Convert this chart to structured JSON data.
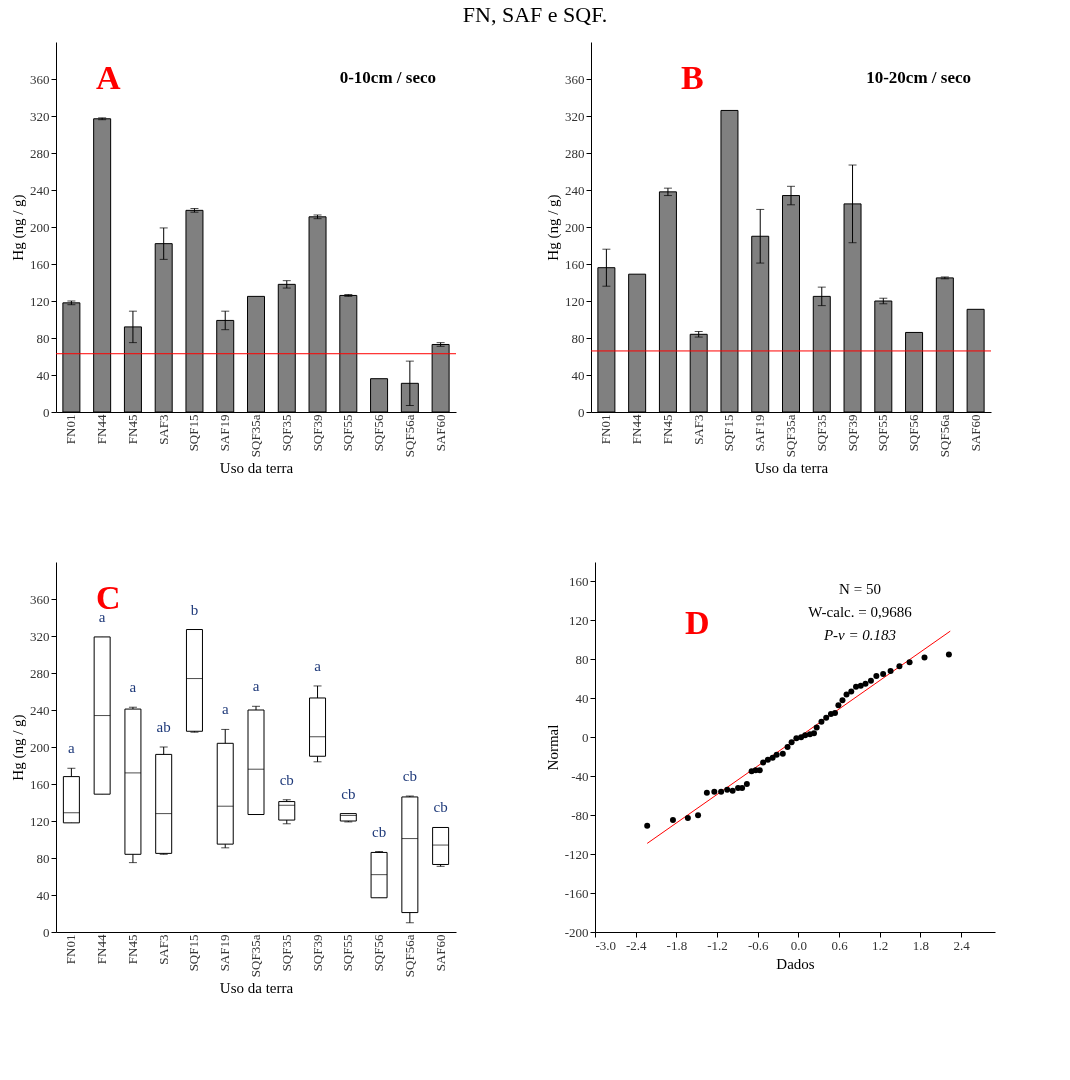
{
  "chart_data": [
    {
      "type": "bar",
      "title": "FN, SAF e SQF.",
      "annotations": [
        "A",
        "0-10cm / seco"
      ],
      "xlabel": "Uso da terra",
      "ylabel": "Hg (ng / g)",
      "categories": [
        "FN01",
        "FN44",
        "FN45",
        "SAF3",
        "SQF15",
        "SAF19",
        "SQF35a",
        "SQF35",
        "SQF39",
        "SQF55",
        "SQF56",
        "SQF56a",
        "SAF60"
      ],
      "color": "#808080",
      "values": [
        118,
        317,
        92,
        182,
        218,
        99,
        125,
        138,
        211,
        126,
        36,
        31,
        73
      ],
      "errors": [
        2,
        1,
        17,
        17,
        2,
        10,
        null,
        4,
        2,
        1,
        null,
        24,
        2
      ],
      "ylim": [
        0,
        400
      ],
      "yticks": [
        0,
        40,
        80,
        120,
        160,
        200,
        240,
        280,
        320,
        360
      ],
      "ref_lines": [
        {
          "axis": "y",
          "value": 63,
          "color": "#ff0000"
        }
      ]
    },
    {
      "type": "bar",
      "annotations": [
        "B",
        "10-20cm / seco"
      ],
      "xlabel": "Uso da terra",
      "ylabel": "Hg (ng / g)",
      "categories": [
        "FN01",
        "FN44",
        "FN45",
        "SAF3",
        "SQF15",
        "SAF19",
        "SQF35a",
        "SQF35",
        "SQF39",
        "SQF55",
        "SQF56",
        "SQF56a",
        "SAF60"
      ],
      "color": "#808080",
      "values": [
        156,
        149,
        238,
        84,
        326,
        190,
        234,
        125,
        225,
        120,
        86,
        145,
        111
      ],
      "errors": [
        20,
        null,
        4,
        3,
        null,
        29,
        10,
        10,
        42,
        3,
        null,
        1,
        null
      ],
      "ylim": [
        0,
        400
      ],
      "yticks": [
        0,
        40,
        80,
        120,
        160,
        200,
        240,
        280,
        320,
        360
      ],
      "ref_lines": [
        {
          "axis": "y",
          "value": 66,
          "color": "#ff0000"
        }
      ]
    },
    {
      "type": "box",
      "xlabel": "Uso da terra",
      "ylabel": "Hg (ng / g)",
      "annotations": [
        "C",
        {
          "text": "a",
          "x": "FN01",
          "y": 177
        },
        {
          "text": "a",
          "x": "FN44",
          "y": 319
        },
        {
          "text": "a",
          "x": "FN45",
          "y": 243
        },
        {
          "text": "ab",
          "x": "SAF3",
          "y": 200
        },
        {
          "text": "b",
          "x": "SQF15",
          "y": 327
        },
        {
          "text": "a",
          "x": "SAF19",
          "y": 219
        },
        {
          "text": "a",
          "x": "SQF35a",
          "y": 244
        },
        {
          "text": "cb",
          "x": "SQF35",
          "y": 143
        },
        {
          "text": "a",
          "x": "SQF39",
          "y": 266
        },
        {
          "text": "cb",
          "x": "SQF55",
          "y": 128
        },
        {
          "text": "cb",
          "x": "SQF56",
          "y": 87
        },
        {
          "text": "cb",
          "x": "SQF56a",
          "y": 147
        },
        {
          "text": "cb",
          "x": "SAF60",
          "y": 113
        }
      ],
      "categories": [
        "FN01",
        "FN44",
        "FN45",
        "SAF3",
        "SQF15",
        "SAF19",
        "SQF35a",
        "SQF35",
        "SQF39",
        "SQF55",
        "SQF56",
        "SQF56a",
        "SAF60"
      ],
      "boxes": [
        {
          "low": 118,
          "q1": 118,
          "median": 129,
          "q3": 168,
          "high": 177
        },
        {
          "low": 149,
          "q1": 149,
          "median": 234,
          "q3": 319,
          "high": 319
        },
        {
          "low": 75,
          "q1": 84,
          "median": 172,
          "q3": 241,
          "high": 243
        },
        {
          "low": 84,
          "q1": 85,
          "median": 128,
          "q3": 192,
          "high": 200
        },
        {
          "low": 216,
          "q1": 217,
          "median": 274,
          "q3": 327,
          "high": 327
        },
        {
          "low": 91,
          "q1": 95,
          "median": 136,
          "q3": 204,
          "high": 219
        },
        {
          "low": 127,
          "q1": 127,
          "median": 176,
          "q3": 240,
          "high": 244
        },
        {
          "low": 117,
          "q1": 121,
          "median": 137,
          "q3": 141,
          "high": 143
        },
        {
          "low": 184,
          "q1": 190,
          "median": 211,
          "q3": 253,
          "high": 266
        },
        {
          "low": 119,
          "q1": 120,
          "median": 126,
          "q3": 128,
          "high": 128
        },
        {
          "low": 37,
          "q1": 37,
          "median": 62,
          "q3": 86,
          "high": 87
        },
        {
          "low": 10,
          "q1": 21,
          "median": 101,
          "q3": 146,
          "high": 147
        },
        {
          "low": 71,
          "q1": 73,
          "median": 94,
          "q3": 113,
          "high": 113
        }
      ],
      "ylim": [
        0,
        400
      ],
      "yticks": [
        0,
        40,
        80,
        120,
        160,
        200,
        240,
        280,
        320,
        360
      ]
    },
    {
      "type": "scatter",
      "annotations": [
        "D",
        "N = 50",
        "W-calc. = 0,9686",
        "P-v = 0.183"
      ],
      "xlabel": "Dados",
      "ylabel": "Normal",
      "xlim": [
        -3.0,
        2.9
      ],
      "xticks": [
        {
          "value": -3.0,
          "label": "-3.0"
        },
        -2.4,
        -1.8,
        -1.2,
        -0.6,
        {
          "value": 0,
          "label": "0.0"
        },
        0.6,
        1.2,
        1.8,
        2.4
      ],
      "ylim": [
        -200,
        180
      ],
      "yticks": [
        -200,
        -160,
        -120,
        -80,
        -40,
        0,
        40,
        80,
        120,
        160
      ],
      "series": [
        {
          "type": "scatter",
          "color": "#000000",
          "x": [
            -2.23,
            -1.85,
            -1.63,
            -1.48,
            -1.35,
            -1.24,
            -1.14,
            -1.05,
            -0.97,
            -0.89,
            -0.83,
            -0.76,
            -0.69,
            -0.63,
            -0.57,
            -0.52,
            -0.45,
            -0.38,
            -0.32,
            -0.23,
            -0.16,
            -0.1,
            -0.03,
            0.04,
            0.1,
            0.17,
            0.23,
            0.27,
            0.34,
            0.41,
            0.48,
            0.54,
            0.59,
            0.65,
            0.71,
            0.78,
            0.85,
            0.92,
            0.99,
            1.07,
            1.15,
            1.25,
            1.36,
            1.49,
            1.64,
            1.86,
            2.22
          ],
          "values": [
            -91,
            -85,
            -83,
            -80,
            -57,
            -56,
            -56,
            -54,
            -55,
            -52,
            -52,
            -48,
            -35,
            -34,
            -34,
            -26,
            -23,
            -21,
            -18,
            -17,
            -10,
            -5,
            -1,
            0,
            2,
            3,
            4,
            10,
            16,
            20,
            24,
            25,
            33,
            38,
            44,
            47,
            52,
            53,
            55,
            58,
            63,
            65,
            68,
            73,
            77,
            82,
            85
          ]
        },
        {
          "type": "line",
          "color": "#ff0000",
          "x": [
            -2.23,
            2.24
          ],
          "values": [
            -109,
            109
          ]
        }
      ]
    }
  ]
}
